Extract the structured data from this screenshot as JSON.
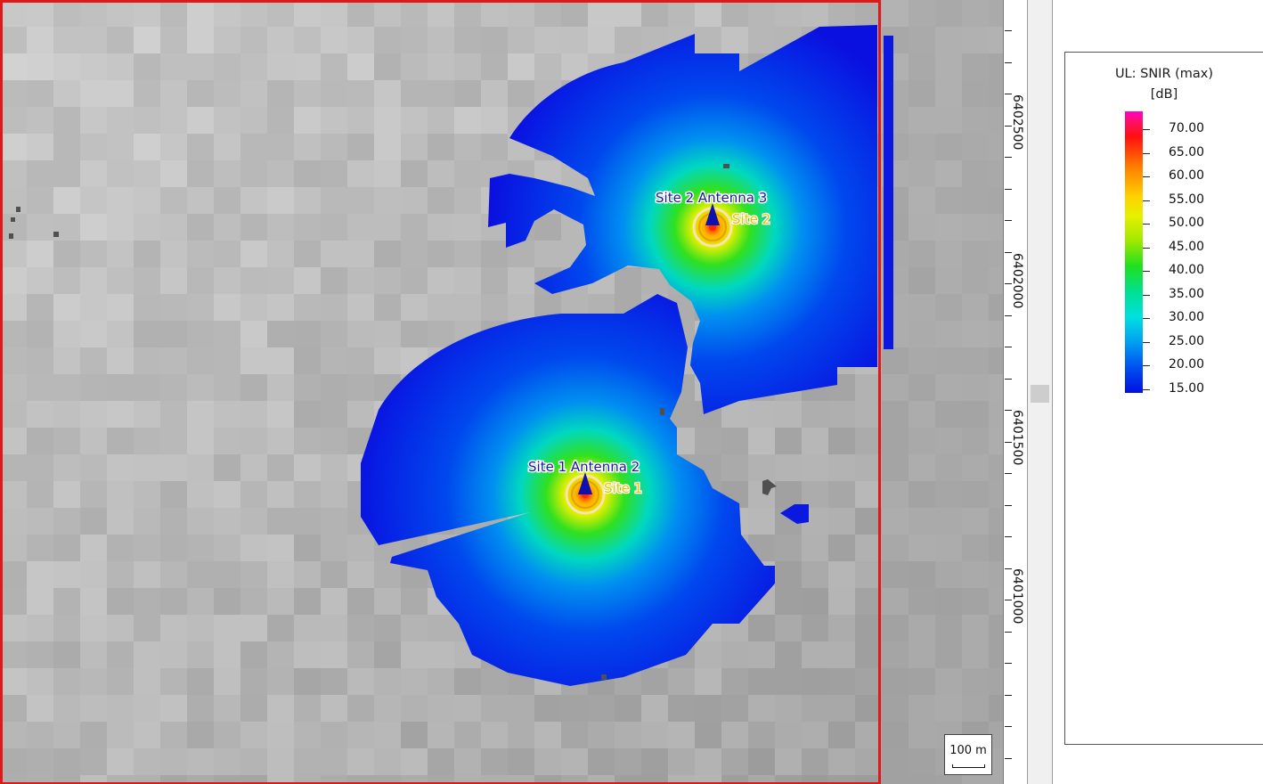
{
  "map": {
    "sites": [
      {
        "site_label": "Site 1",
        "antenna_label": "Site 1 Antenna 2"
      },
      {
        "site_label": "Site 2",
        "antenna_label": "Site 2 Antenna 3"
      }
    ],
    "y_axis_labels": [
      "6402500",
      "6402000",
      "6401500",
      "6401000"
    ],
    "scale_label": "100 m",
    "colors": {
      "terrain": "#b4b4b4",
      "selection_border": "#e01818",
      "coverage_low": "#0a10e0",
      "coverage_high": "#ff00c8",
      "site_label_text": "#f0c000",
      "antenna_label_text": "#1a1aa0"
    }
  },
  "legend": {
    "title_line1": "UL: SNIR (max)",
    "title_line2": "[dB]",
    "values": [
      "70.00",
      "65.00",
      "60.00",
      "55.00",
      "50.00",
      "45.00",
      "40.00",
      "35.00",
      "30.00",
      "25.00",
      "20.00",
      "15.00"
    ]
  }
}
